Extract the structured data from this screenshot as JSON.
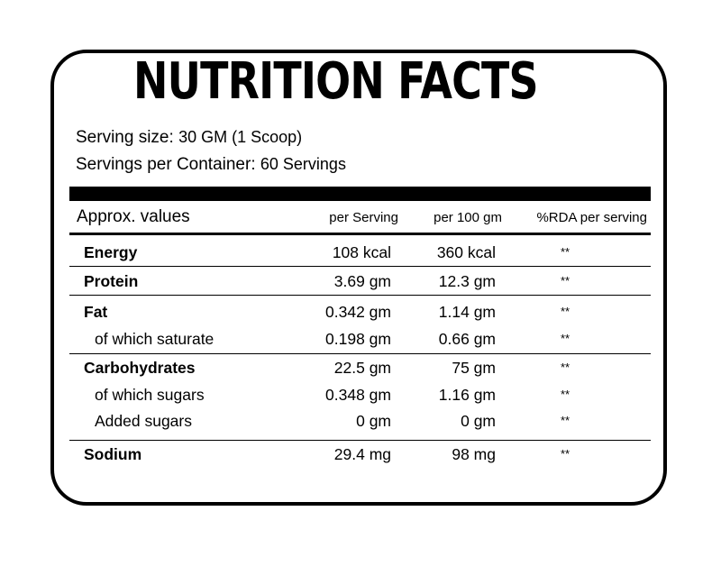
{
  "label": {
    "title": "NUTRITION FACTS",
    "serving_size_label": "Serving size:",
    "serving_size_value": "30 GM (1 Scoop)",
    "servings_per_container_label": "Servings per Container:",
    "servings_per_container_value": "60 Servings",
    "columns": {
      "name": "Approx. values",
      "per_serving": "per Serving",
      "per_100g": "per 100 gm",
      "rda": "%RDA per serving"
    },
    "rows": [
      {
        "name": "Energy",
        "per_serving": "108 kcal",
        "per_100g": "360 kcal",
        "rda": "**"
      },
      {
        "name": "Protein",
        "per_serving": "3.69 gm",
        "per_100g": "12.3 gm",
        "rda": "**"
      },
      {
        "name": "Fat",
        "per_serving": "0.342 gm",
        "per_100g": "1.14 gm",
        "rda": "**"
      },
      {
        "name": "of which saturate",
        "per_serving": "0.198 gm",
        "per_100g": "0.66 gm",
        "rda": "**"
      },
      {
        "name": "Carbohydrates",
        "per_serving": "22.5 gm",
        "per_100g": "75 gm",
        "rda": "**"
      },
      {
        "name": "of which sugars",
        "per_serving": "0.348 gm",
        "per_100g": "1.16 gm",
        "rda": "**"
      },
      {
        "name": "Added sugars",
        "per_serving": "0 gm",
        "per_100g": "0 gm",
        "rda": "**"
      },
      {
        "name": "Sodium",
        "per_serving": "29.4 mg",
        "per_100g": "98 mg",
        "rda": "**"
      }
    ]
  }
}
